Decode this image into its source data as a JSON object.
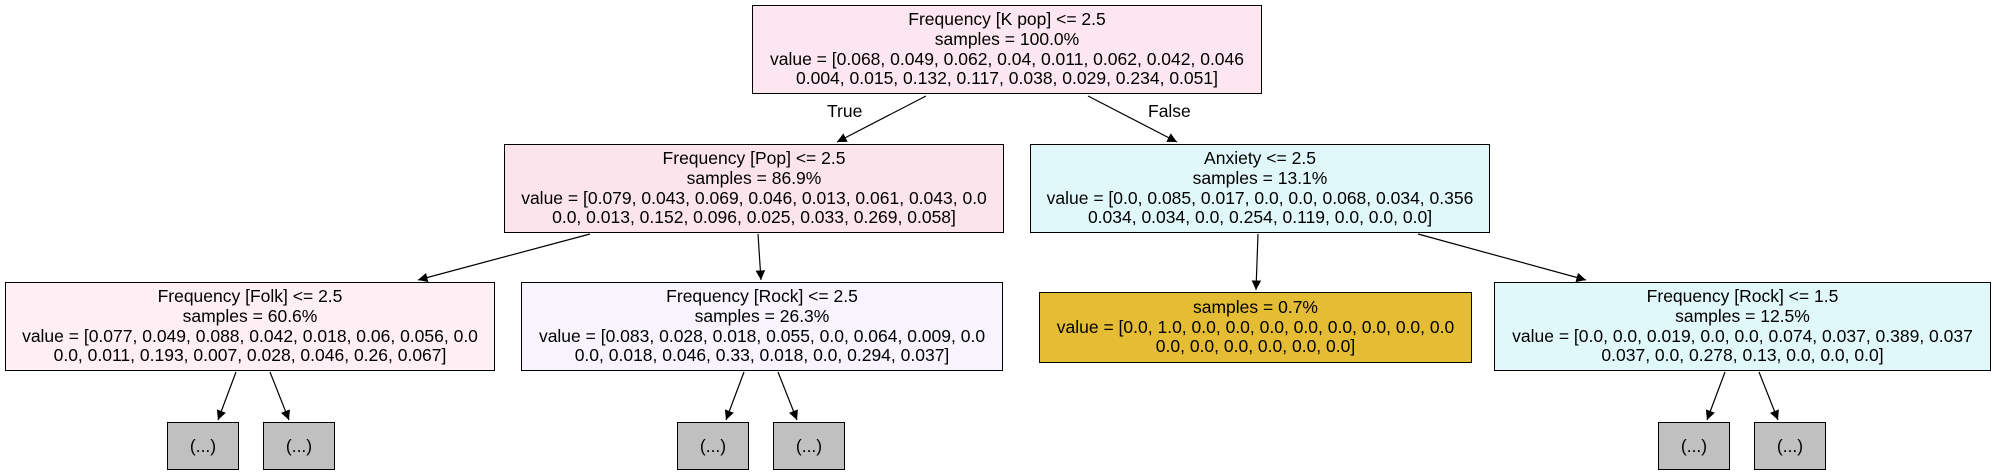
{
  "nodes": {
    "root": {
      "lines": [
        "Frequency [K pop] <= 2.5",
        "samples = 100.0%",
        "value = [0.068, 0.049, 0.062, 0.04, 0.011, 0.062, 0.042, 0.046",
        "0.004, 0.015, 0.132, 0.117, 0.038, 0.029, 0.234, 0.051]"
      ],
      "fill": "#fce6ef"
    },
    "n1": {
      "lines": [
        "Frequency [Pop] <= 2.5",
        "samples = 86.9%",
        "value = [0.079, 0.043, 0.069, 0.046, 0.013, 0.061, 0.043, 0.0",
        "0.0, 0.013, 0.152, 0.096, 0.025, 0.033, 0.269, 0.058]"
      ],
      "fill": "#fce4ec"
    },
    "n2": {
      "lines": [
        "Anxiety <= 2.5",
        "samples = 13.1%",
        "value = [0.0, 0.085, 0.017, 0.0, 0.0, 0.068, 0.034, 0.356",
        "0.034, 0.034, 0.0, 0.254, 0.119, 0.0, 0.0, 0.0]"
      ],
      "fill": "#e1f8fb"
    },
    "n3": {
      "lines": [
        "Frequency [Folk] <= 2.5",
        "samples = 60.6%",
        "value = [0.077, 0.049, 0.088, 0.042, 0.018, 0.06, 0.056, 0.0",
        "0.0, 0.011, 0.193, 0.007, 0.028, 0.046, 0.26, 0.067]"
      ],
      "fill": "#fdeff4"
    },
    "n4": {
      "lines": [
        "Frequency [Rock] <= 2.5",
        "samples = 26.3%",
        "value = [0.083, 0.028, 0.018, 0.055, 0.0, 0.064, 0.009, 0.0",
        "0.0, 0.018, 0.046, 0.33, 0.018, 0.0, 0.294, 0.037]"
      ],
      "fill": "#f7f4fd"
    },
    "n5": {
      "lines": [
        "samples = 0.7%",
        "value = [0.0, 1.0, 0.0, 0.0, 0.0, 0.0, 0.0, 0.0, 0.0, 0.0",
        "0.0, 0.0, 0.0, 0.0, 0.0, 0.0]"
      ],
      "fill": "#e5bd35"
    },
    "n6": {
      "lines": [
        "Frequency [Rock] <= 1.5",
        "samples = 12.5%",
        "value = [0.0, 0.0, 0.019, 0.0, 0.0, 0.074, 0.037, 0.389, 0.037",
        "0.037, 0.0, 0.278, 0.13, 0.0, 0.0, 0.0]"
      ],
      "fill": "#e1f8fb"
    }
  },
  "truncated_label": "(...)",
  "edge_labels": {
    "true_label": "True",
    "false_label": "False"
  },
  "colors": {
    "truncated_fill": "#c0c0c0",
    "line": "#000000"
  }
}
